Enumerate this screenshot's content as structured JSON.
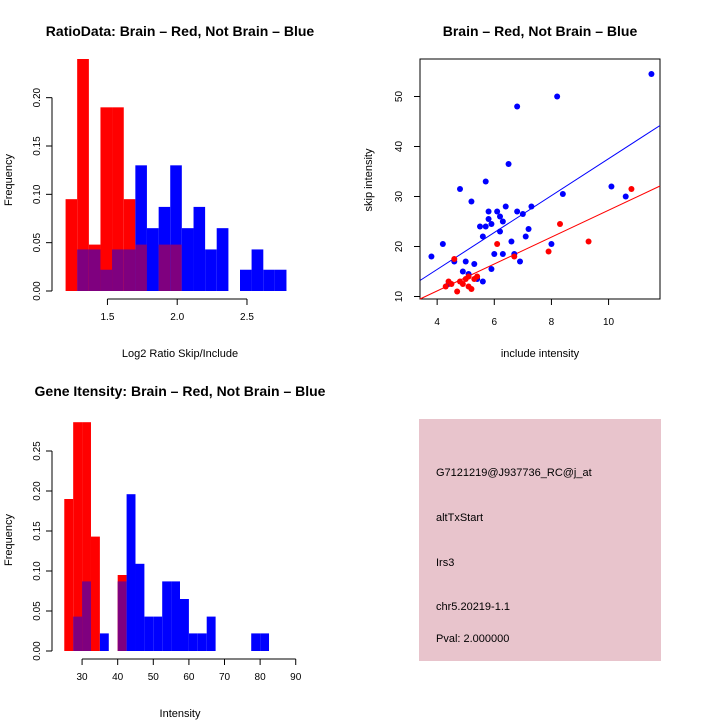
{
  "chart_data": [
    {
      "type": "bar",
      "title": "RatioData: Brain – Red, Not Brain – Blue",
      "xlabel": "Log2 Ratio Skip/Include",
      "ylabel": "Frequency",
      "xlim": [
        1.16,
        2.88
      ],
      "ylim": [
        0,
        0.24
      ],
      "xticks": [
        "1.5",
        "2.0",
        "2.5"
      ],
      "yticks": [
        "0.00",
        "0.05",
        "0.10",
        "0.15",
        "0.20"
      ],
      "bin_edges": [
        1.2,
        1.283,
        1.367,
        1.45,
        1.533,
        1.617,
        1.7,
        1.783,
        1.867,
        1.95,
        2.033,
        2.117,
        2.2,
        2.283,
        2.367,
        2.45,
        2.533,
        2.617,
        2.7,
        2.783
      ],
      "series": [
        {
          "name": "Brain",
          "color": "#ff0000",
          "values": [
            0.095,
            0.24,
            0.048,
            0.19,
            0.19,
            0.095,
            0.048,
            0,
            0.048,
            0.048,
            0,
            0,
            0,
            0,
            0,
            0,
            0,
            0,
            0
          ]
        },
        {
          "name": "Not Brain",
          "color": "#0000ff",
          "values": [
            0,
            0.043,
            0.043,
            0.022,
            0.043,
            0.043,
            0.13,
            0.065,
            0.087,
            0.13,
            0.065,
            0.087,
            0.043,
            0.065,
            0,
            0.022,
            0.043,
            0.022,
            0.022
          ]
        }
      ],
      "overlap_color": "#7f007f"
    },
    {
      "type": "scatter",
      "title": "Brain – Red, Not Brain – Blue",
      "xlabel": "include intensity",
      "ylabel": "skip intensity",
      "xlim": [
        3.4,
        11.8
      ],
      "ylim": [
        9.5,
        57.5
      ],
      "xticks": [
        "4",
        "6",
        "8",
        "10"
      ],
      "yticks": [
        "10",
        "20",
        "30",
        "40",
        "50"
      ],
      "series": [
        {
          "name": "Not Brain",
          "color": "#0000ff",
          "points": [
            [
              3.8,
              18
            ],
            [
              4.2,
              20.5
            ],
            [
              4.4,
              12.5
            ],
            [
              4.6,
              17
            ],
            [
              4.8,
              31.5
            ],
            [
              4.9,
              15
            ],
            [
              5.0,
              17
            ],
            [
              5.1,
              14.5
            ],
            [
              5.2,
              29
            ],
            [
              5.3,
              16.5
            ],
            [
              5.4,
              13.5
            ],
            [
              5.5,
              24
            ],
            [
              5.6,
              22
            ],
            [
              5.6,
              13
            ],
            [
              5.7,
              24
            ],
            [
              5.7,
              33
            ],
            [
              5.8,
              25.5
            ],
            [
              5.8,
              27
            ],
            [
              5.9,
              24.5
            ],
            [
              5.9,
              15.5
            ],
            [
              6.0,
              18.5
            ],
            [
              6.1,
              27
            ],
            [
              6.2,
              26
            ],
            [
              6.2,
              23
            ],
            [
              6.3,
              25
            ],
            [
              6.3,
              18.5
            ],
            [
              6.4,
              28
            ],
            [
              6.5,
              36.5
            ],
            [
              6.6,
              21
            ],
            [
              6.7,
              18.5
            ],
            [
              6.8,
              27
            ],
            [
              6.8,
              48
            ],
            [
              6.9,
              17
            ],
            [
              7.0,
              26.5
            ],
            [
              7.1,
              22
            ],
            [
              7.2,
              23.5
            ],
            [
              7.3,
              28
            ],
            [
              8.0,
              20.5
            ],
            [
              8.2,
              50
            ],
            [
              8.4,
              30.5
            ],
            [
              10.1,
              32
            ],
            [
              10.6,
              30
            ],
            [
              11.5,
              54.5
            ]
          ]
        },
        {
          "name": "Brain",
          "color": "#ff0000",
          "points": [
            [
              4.3,
              12
            ],
            [
              4.4,
              13
            ],
            [
              4.5,
              12.5
            ],
            [
              4.6,
              17.5
            ],
            [
              4.7,
              11
            ],
            [
              4.8,
              13
            ],
            [
              4.9,
              12.5
            ],
            [
              5.0,
              13.5
            ],
            [
              5.1,
              14
            ],
            [
              5.1,
              12
            ],
            [
              5.2,
              11.5
            ],
            [
              5.3,
              13.5
            ],
            [
              5.4,
              14
            ],
            [
              6.1,
              20.5
            ],
            [
              6.7,
              18
            ],
            [
              7.9,
              19
            ],
            [
              8.3,
              24.5
            ],
            [
              9.3,
              21
            ],
            [
              10.8,
              31.5
            ]
          ]
        }
      ],
      "fit_lines": [
        {
          "name": "Not Brain fit",
          "color": "#0000ff",
          "x": [
            3.4,
            11.8
          ],
          "y": [
            13.2,
            44.2
          ]
        },
        {
          "name": "Brain fit",
          "color": "#ff0000",
          "x": [
            3.4,
            11.8
          ],
          "y": [
            9.5,
            32.1
          ]
        }
      ]
    },
    {
      "type": "bar",
      "title": "Gene Itensity: Brain – Red, Not Brain – Blue",
      "xlabel": "Intensity",
      "ylabel": "Frequency",
      "xlim": [
        23.8,
        91.2
      ],
      "ylim": [
        0,
        0.29
      ],
      "xticks": [
        "30",
        "40",
        "50",
        "60",
        "70",
        "80",
        "90"
      ],
      "yticks": [
        "0.00",
        "0.05",
        "0.10",
        "0.15",
        "0.20",
        "0.25"
      ],
      "bin_edges": [
        25,
        27.5,
        30,
        32.5,
        35,
        37.5,
        40,
        42.5,
        45,
        47.5,
        50,
        52.5,
        55,
        57.5,
        60,
        62.5,
        65,
        67.5,
        70,
        72.5,
        75,
        77.5,
        80,
        82.5,
        85,
        87.5,
        90
      ],
      "series": [
        {
          "name": "Brain",
          "color": "#ff0000",
          "values": [
            0.19,
            0.286,
            0.286,
            0.143,
            0,
            0,
            0.095,
            0,
            0,
            0,
            0,
            0,
            0,
            0,
            0,
            0,
            0,
            0,
            0,
            0,
            0,
            0,
            0,
            0,
            0,
            0
          ]
        },
        {
          "name": "Not Brain",
          "color": "#0000ff",
          "values": [
            0,
            0.043,
            0.087,
            0,
            0.022,
            0,
            0.087,
            0.196,
            0.109,
            0.043,
            0.043,
            0.087,
            0.087,
            0.065,
            0.022,
            0.022,
            0.043,
            0,
            0,
            0,
            0,
            0.022,
            0.022,
            0,
            0,
            0
          ]
        }
      ],
      "overlap_color": "#7f007f"
    }
  ],
  "info_panel": {
    "background": "#e8c4cc",
    "lines": [
      {
        "text": "G7121219@J937736_RC@j_at",
        "color": "#000000"
      },
      {
        "text": "altTxStart",
        "color": "#000000"
      },
      {
        "text": "Irs3",
        "color": "#000000"
      },
      {
        "text": "chr5.20219-1.1",
        "color": "#000000"
      },
      {
        "text": "Pval: 2.000000",
        "color": "#8b0000"
      }
    ]
  }
}
